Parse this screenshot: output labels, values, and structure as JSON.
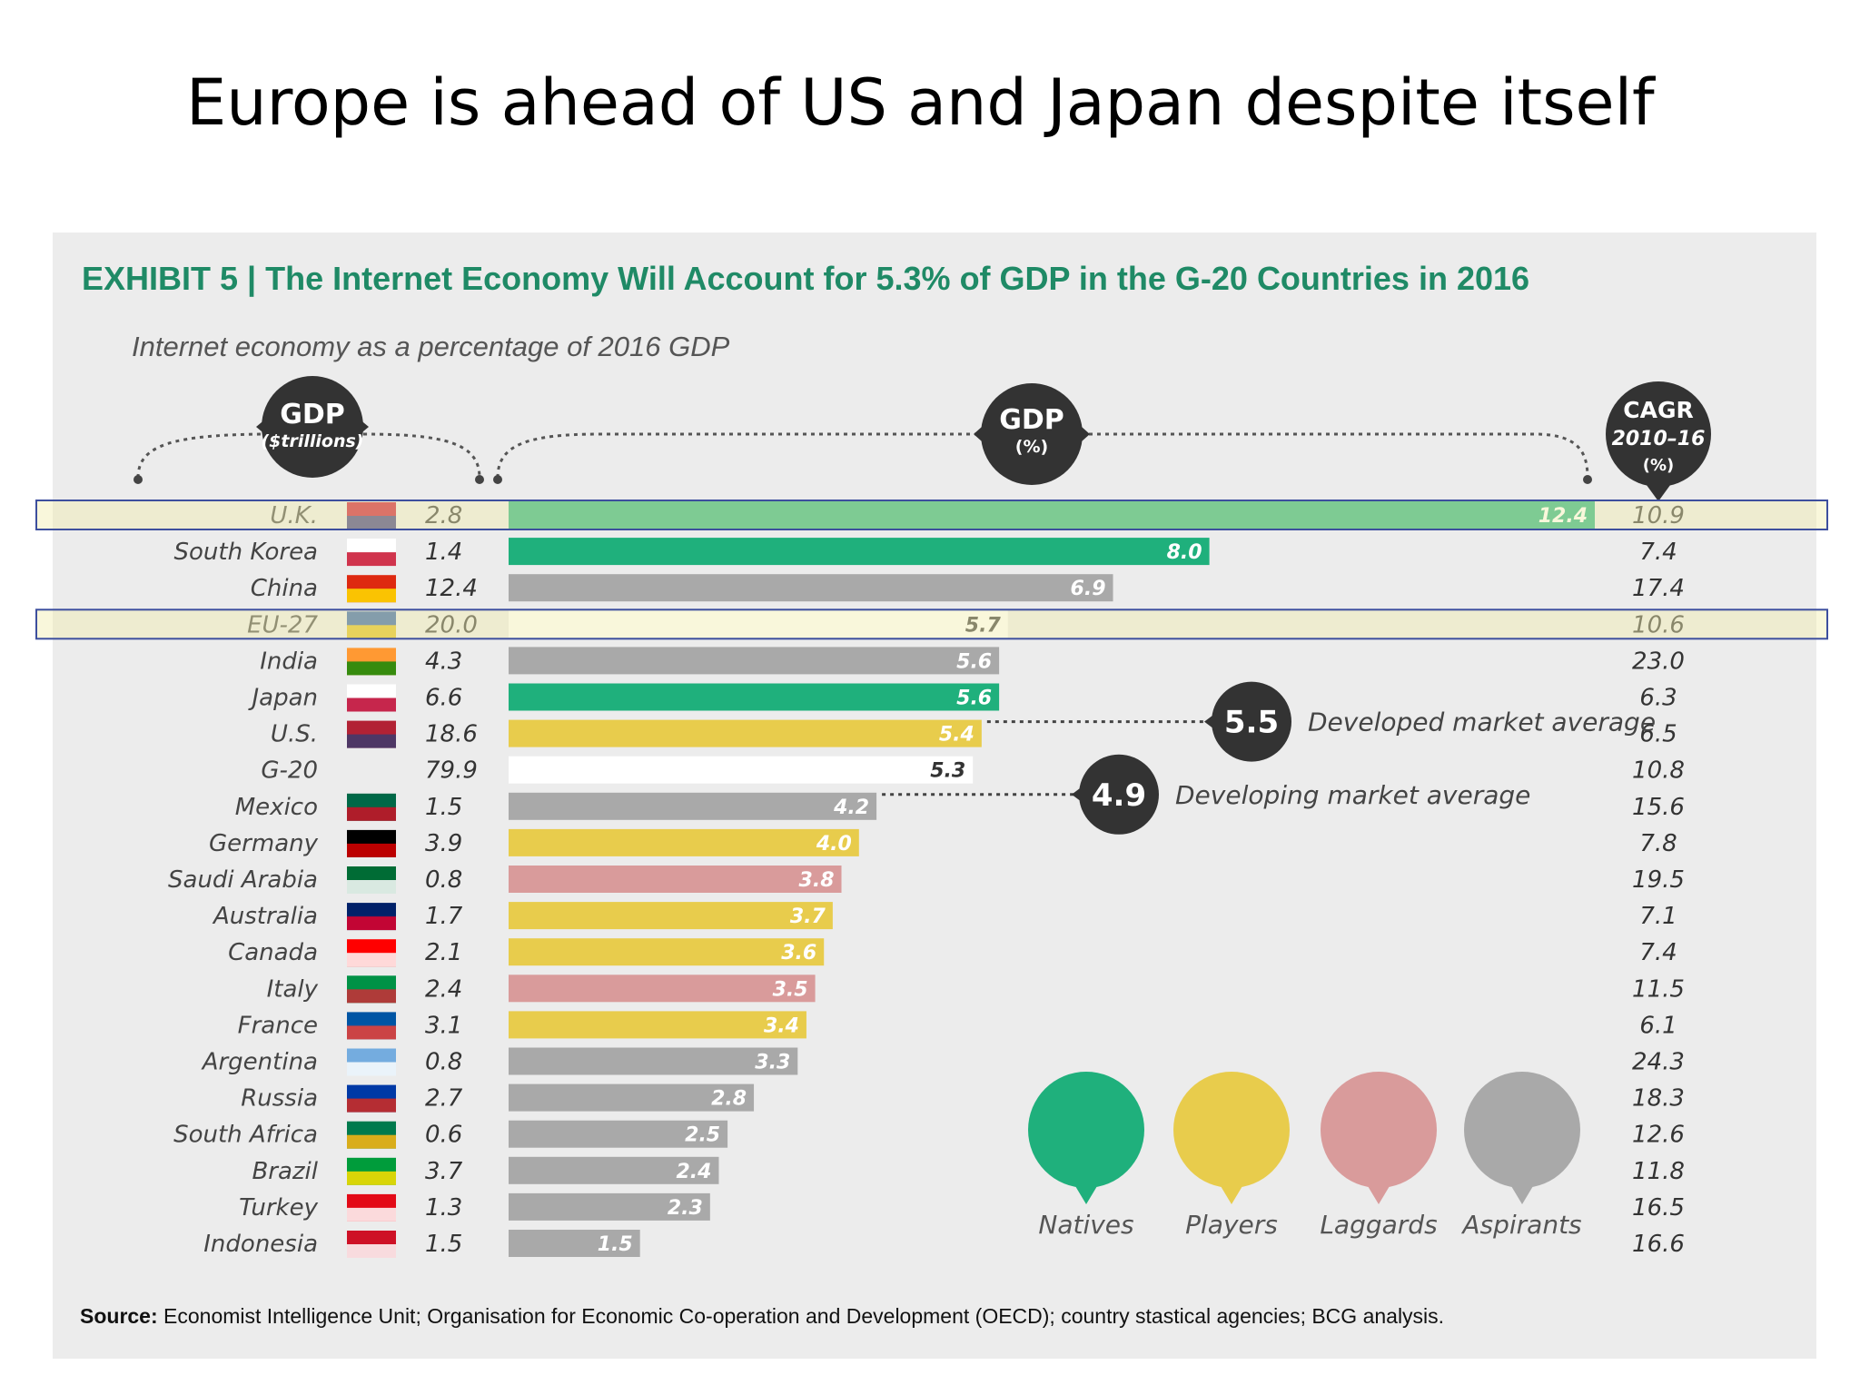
{
  "slide": {
    "title": "Europe is ahead of US and Japan despite itself"
  },
  "chart_data": {
    "type": "bar",
    "exhibit_label": "EXHIBIT 5",
    "title": "The Internet Economy Will Account for 5.3% of GDP in the G-20 Countries in 2016",
    "subtitle": "Internet economy as a percentage of 2016 GDP",
    "column_headers": {
      "gdp_trillions": {
        "title": "GDP",
        "sub": "($trillions)"
      },
      "gdp_percent": {
        "title": "GDP",
        "sub": "(%)"
      },
      "cagr": {
        "title": "CAGR",
        "sub": "2010–16",
        "sub2": "(%)"
      }
    },
    "categories": [
      "U.K.",
      "South Korea",
      "China",
      "EU-27",
      "India",
      "Japan",
      "U.S.",
      "G-20",
      "Mexico",
      "Germany",
      "Saudi Arabia",
      "Australia",
      "Canada",
      "Italy",
      "France",
      "Argentina",
      "Russia",
      "South Africa",
      "Brazil",
      "Turkey",
      "Indonesia"
    ],
    "gdp_trillions": [
      "2.8",
      "1.4",
      "12.4",
      "20.0",
      "4.3",
      "6.6",
      "18.6",
      "79.9",
      "1.5",
      "3.9",
      "0.8",
      "1.7",
      "2.1",
      "2.4",
      "3.1",
      "0.8",
      "2.7",
      "0.6",
      "3.7",
      "1.3",
      "1.5"
    ],
    "values": [
      12.4,
      8.0,
      6.9,
      5.7,
      5.6,
      5.6,
      5.4,
      5.3,
      4.2,
      4.0,
      3.8,
      3.7,
      3.6,
      3.5,
      3.4,
      3.3,
      2.8,
      2.5,
      2.4,
      2.3,
      1.5
    ],
    "value_labels": [
      "12.4",
      "8.0",
      "6.9",
      "5.7",
      "5.6",
      "5.6",
      "5.4",
      "5.3",
      "4.2",
      "4.0",
      "3.8",
      "3.7",
      "3.6",
      "3.5",
      "3.4",
      "3.3",
      "2.8",
      "2.5",
      "2.4",
      "2.3",
      "1.5"
    ],
    "groups": [
      "natives",
      "natives",
      "aspirants",
      "aggregate",
      "aspirants",
      "natives",
      "players",
      "aggregate",
      "aspirants",
      "players",
      "laggards",
      "players",
      "players",
      "laggards",
      "players",
      "aspirants",
      "aspirants",
      "aspirants",
      "aspirants",
      "aspirants",
      "aspirants"
    ],
    "cagr": [
      "10.9",
      "7.4",
      "17.4",
      "10.6",
      "23.0",
      "6.3",
      "6.5",
      "10.8",
      "15.6",
      "7.8",
      "19.5",
      "7.1",
      "7.4",
      "11.5",
      "6.1",
      "24.3",
      "18.3",
      "12.6",
      "11.8",
      "16.5",
      "16.6"
    ],
    "highlighted": [
      "U.K.",
      "EU-27"
    ],
    "xlim": [
      0,
      12.4
    ],
    "averages": [
      {
        "value": 5.5,
        "label": "5.5",
        "text": "Developed market average"
      },
      {
        "value": 4.9,
        "label": "4.9",
        "text": "Developing market average"
      }
    ],
    "legend": [
      {
        "key": "natives",
        "label": "Natives",
        "color": "#1fb07c"
      },
      {
        "key": "players",
        "label": "Players",
        "color": "#e8cc4c"
      },
      {
        "key": "laggards",
        "label": "Laggards",
        "color": "#d99b9b"
      },
      {
        "key": "aspirants",
        "label": "Aspirants",
        "color": "#a9a9a9"
      }
    ],
    "aggregate_color": "#ffffff"
  },
  "source": {
    "label": "Source:",
    "text": "Economist Intelligence Unit; Organisation for Economic Co-operation and Development (OECD); country stastical agencies; BCG analysis."
  }
}
